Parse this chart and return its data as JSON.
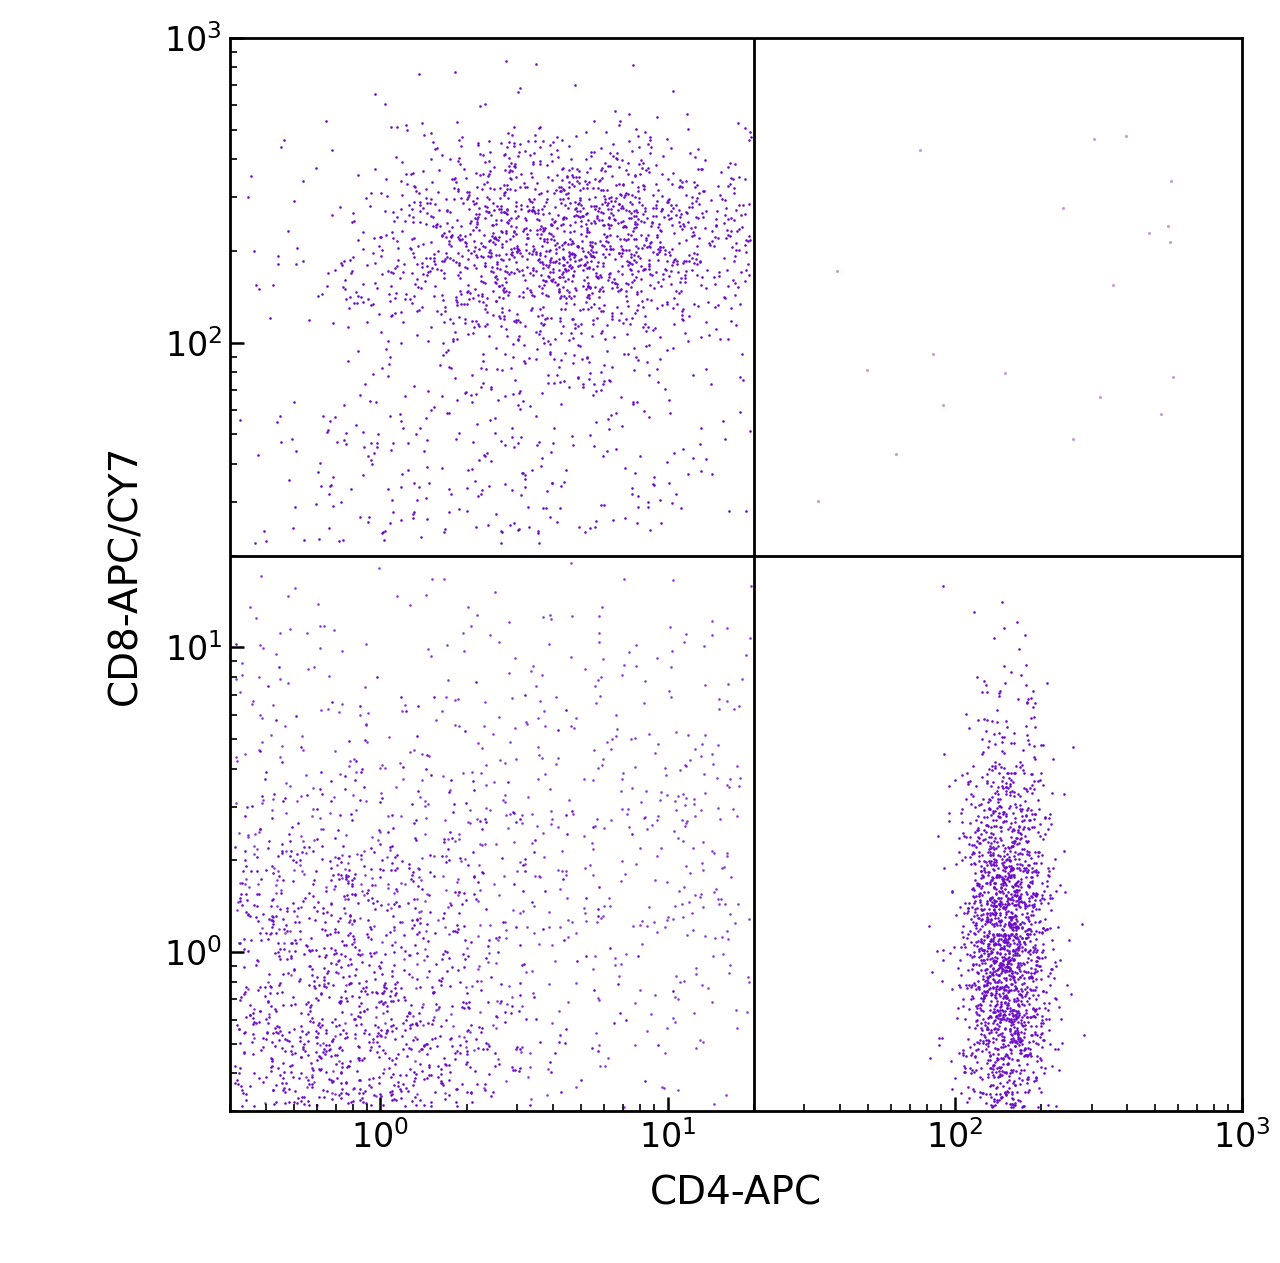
{
  "xlabel": "CD4-APC",
  "ylabel": "CD8-APC/CY7",
  "xlim": [
    0.3,
    1000
  ],
  "ylim": [
    0.3,
    1000
  ],
  "quadrant_x": 20,
  "quadrant_y": 20,
  "dot_color_main": "#6B0AC9",
  "dot_color_light": "#BB88CC",
  "dot_size": 3.5,
  "background_color": "#ffffff",
  "tick_label_fontsize": 24,
  "axis_label_fontsize": 28,
  "axis_label_fontweight": "normal"
}
